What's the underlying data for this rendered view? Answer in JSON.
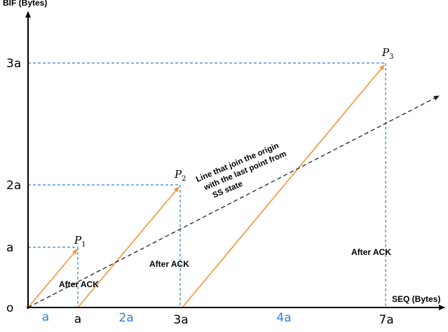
{
  "axes": {
    "y_title": "BIF (Bytes)",
    "x_title": "SEQ (Bytes)",
    "origin": "o",
    "y_ticks": [
      "a",
      "2a",
      "3a"
    ],
    "x_ticks_black": [
      "a",
      "3a",
      "7a"
    ],
    "x_ticks_blue": [
      "a",
      "2a",
      "4a"
    ]
  },
  "points": [
    {
      "name": "P",
      "sub": "1"
    },
    {
      "name": "P",
      "sub": "2"
    },
    {
      "name": "P",
      "sub": "3"
    }
  ],
  "ack_labels": [
    "After ACK",
    "After ACK",
    "After ACK"
  ],
  "annotation": [
    "Line that join the origin",
    "with the last point from",
    "SS state"
  ],
  "colors": {
    "segment": "#f5943a",
    "guide": "#2f7fd6",
    "axis": "#000000",
    "dashed_line": "#222222",
    "blue_text": "#2f7fd6"
  }
}
